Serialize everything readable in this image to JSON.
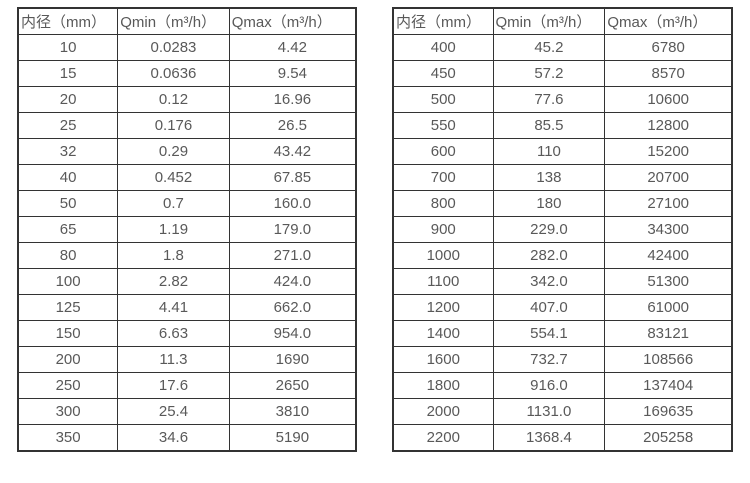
{
  "colors": {
    "border": "#333333",
    "text": "#595959",
    "background": "#ffffff"
  },
  "chart_data": [
    {
      "type": "table",
      "title": "",
      "columns": [
        "内径（mm）",
        "Qmin（m³/h）",
        "Qmax（m³/h）"
      ],
      "rows": [
        [
          "10",
          "0.0283",
          "4.42"
        ],
        [
          "15",
          "0.0636",
          "9.54"
        ],
        [
          "20",
          "0.12",
          "16.96"
        ],
        [
          "25",
          "0.176",
          "26.5"
        ],
        [
          "32",
          "0.29",
          "43.42"
        ],
        [
          "40",
          "0.452",
          "67.85"
        ],
        [
          "50",
          "0.7",
          "160.0"
        ],
        [
          "65",
          "1.19",
          "179.0"
        ],
        [
          "80",
          "1.8",
          "271.0"
        ],
        [
          "100",
          "2.82",
          "424.0"
        ],
        [
          "125",
          "4.41",
          "662.0"
        ],
        [
          "150",
          "6.63",
          "954.0"
        ],
        [
          "200",
          "11.3",
          "1690"
        ],
        [
          "250",
          "17.6",
          "2650"
        ],
        [
          "300",
          "25.4",
          "3810"
        ],
        [
          "350",
          "34.6",
          "5190"
        ]
      ]
    },
    {
      "type": "table",
      "title": "",
      "columns": [
        "内径（mm）",
        "Qmin（m³/h）",
        "Qmax（m³/h）"
      ],
      "rows": [
        [
          "400",
          "45.2",
          "6780"
        ],
        [
          "450",
          "57.2",
          "8570"
        ],
        [
          "500",
          "77.6",
          "10600"
        ],
        [
          "550",
          "85.5",
          "12800"
        ],
        [
          "600",
          "110",
          "15200"
        ],
        [
          "700",
          "138",
          "20700"
        ],
        [
          "800",
          "180",
          "27100"
        ],
        [
          "900",
          "229.0",
          "34300"
        ],
        [
          "1000",
          "282.0",
          "42400"
        ],
        [
          "1100",
          "342.0",
          "51300"
        ],
        [
          "1200",
          "407.0",
          "61000"
        ],
        [
          "1400",
          "554.1",
          "83121"
        ],
        [
          "1600",
          "732.7",
          "108566"
        ],
        [
          "1800",
          "916.0",
          "137404"
        ],
        [
          "2000",
          "1131.0",
          "169635"
        ],
        [
          "2200",
          "1368.4",
          "205258"
        ]
      ]
    }
  ]
}
